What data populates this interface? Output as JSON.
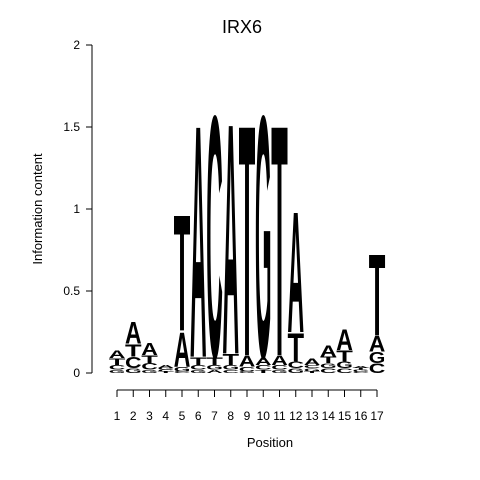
{
  "chart_data": {
    "type": "sequence-logo",
    "title": "IRX6",
    "xlabel": "Position",
    "ylabel": "Information content",
    "ylim": [
      0,
      2
    ],
    "y_ticks": [
      "0",
      "0.5",
      "1",
      "1.5",
      "2"
    ],
    "y_tick_values": [
      0,
      0.5,
      1,
      1.5,
      2
    ],
    "positions": [
      "1",
      "2",
      "3",
      "4",
      "5",
      "6",
      "7",
      "8",
      "9",
      "10",
      "11",
      "12",
      "13",
      "14",
      "15",
      "16",
      "17"
    ],
    "letter_colors": {
      "A": "#00cc00",
      "C": "#0000ee",
      "G": "#ffa500",
      "T": "#ff0000"
    },
    "columns": [
      [
        [
          "G",
          0.02
        ],
        [
          "C",
          0.03
        ],
        [
          "T",
          0.04
        ],
        [
          "A",
          0.05
        ]
      ],
      [
        [
          "G",
          0.03
        ],
        [
          "C",
          0.07
        ],
        [
          "T",
          0.08
        ],
        [
          "A",
          0.14
        ]
      ],
      [
        [
          "G",
          0.02
        ],
        [
          "C",
          0.04
        ],
        [
          "T",
          0.05
        ],
        [
          "A",
          0.08
        ]
      ],
      [
        [
          "T",
          0.01
        ],
        [
          "C",
          0.01
        ],
        [
          "G",
          0.01
        ],
        [
          "A",
          0.02
        ]
      ],
      [
        [
          "C",
          0.01
        ],
        [
          "G",
          0.03
        ],
        [
          "A",
          0.22
        ],
        [
          "T",
          0.74
        ]
      ],
      [
        [
          "G",
          0.02
        ],
        [
          "C",
          0.03
        ],
        [
          "T",
          0.05
        ],
        [
          "A",
          1.48
        ]
      ],
      [
        [
          "A",
          0.02
        ],
        [
          "G",
          0.03
        ],
        [
          "T",
          0.05
        ],
        [
          "C",
          1.54
        ]
      ],
      [
        [
          "C",
          0.02
        ],
        [
          "G",
          0.03
        ],
        [
          "T",
          0.07
        ],
        [
          "A",
          1.47
        ]
      ],
      [
        [
          "G",
          0.01
        ],
        [
          "C",
          0.03
        ],
        [
          "A",
          0.07
        ],
        [
          "T",
          1.47
        ]
      ],
      [
        [
          "T",
          0.02
        ],
        [
          "C",
          0.03
        ],
        [
          "A",
          0.05
        ],
        [
          "G",
          1.54
        ]
      ],
      [
        [
          "G",
          0.02
        ],
        [
          "C",
          0.03
        ],
        [
          "A",
          0.06
        ],
        [
          "T",
          1.47
        ]
      ],
      [
        [
          "G",
          0.03
        ],
        [
          "C",
          0.04
        ],
        [
          "T",
          0.18
        ],
        [
          "A",
          0.77
        ]
      ],
      [
        [
          "T",
          0.01
        ],
        [
          "G",
          0.02
        ],
        [
          "C",
          0.02
        ],
        [
          "A",
          0.04
        ]
      ],
      [
        [
          "C",
          0.03
        ],
        [
          "G",
          0.03
        ],
        [
          "T",
          0.04
        ],
        [
          "A",
          0.07
        ]
      ],
      [
        [
          "C",
          0.03
        ],
        [
          "G",
          0.04
        ],
        [
          "T",
          0.07
        ],
        [
          "A",
          0.13
        ]
      ],
      [
        [
          "C",
          0.01
        ],
        [
          "G",
          0.01
        ],
        [
          "T",
          0.01
        ],
        [
          "A",
          0.01
        ]
      ],
      [
        [
          "C",
          0.06
        ],
        [
          "G",
          0.07
        ],
        [
          "A",
          0.1
        ],
        [
          "T",
          0.52
        ]
      ]
    ]
  }
}
